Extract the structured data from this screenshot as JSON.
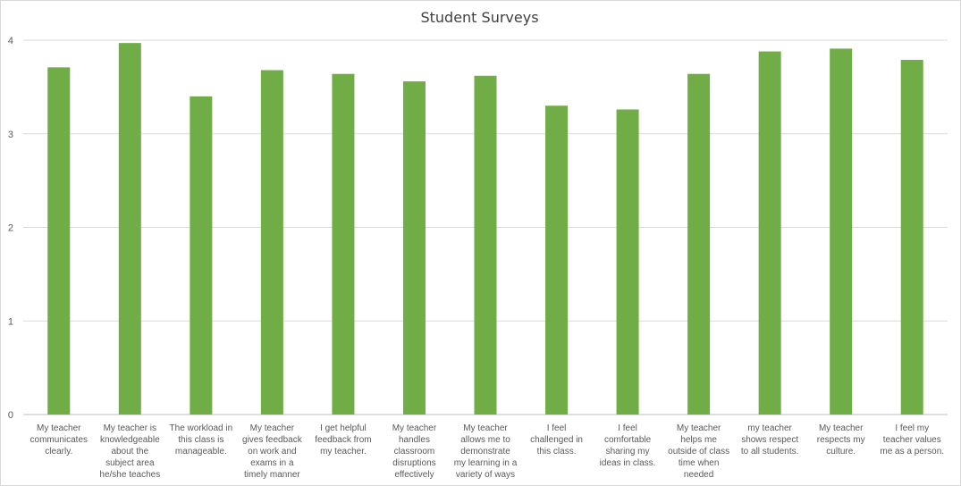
{
  "chart_data": {
    "type": "bar",
    "title": "Student Surveys",
    "xlabel": "",
    "ylabel": "",
    "ylim": [
      0,
      4
    ],
    "yticks": [
      "0",
      "1",
      "2",
      "3",
      "4"
    ],
    "grid": true,
    "bar_color": "#70ad47",
    "categories": [
      [
        "My teacher",
        "communicates",
        "clearly."
      ],
      [
        "My teacher is",
        "knowledgeable",
        "about the",
        "subject area",
        "he/she teaches"
      ],
      [
        "The workload in",
        "this class is",
        "manageable."
      ],
      [
        "My teacher",
        "gives feedback",
        "on work and",
        "exams in a",
        "timely manner"
      ],
      [
        "I get helpful",
        "feedback from",
        "my teacher."
      ],
      [
        "My teacher",
        "handles",
        "classroom",
        "disruptions",
        "effectively"
      ],
      [
        "My teacher",
        "allows me to",
        "demonstrate",
        "my learning in a",
        "variety of ways"
      ],
      [
        "I feel",
        "challenged in",
        "this class."
      ],
      [
        "I feel",
        "comfortable",
        "sharing my",
        "ideas in class."
      ],
      [
        "My teacher",
        "helps me",
        "outside of class",
        "time when",
        "needed"
      ],
      [
        "my teacher",
        "shows respect",
        "to all students."
      ],
      [
        "My teacher",
        "respects my",
        "culture."
      ],
      [
        "I feel my",
        "teacher values",
        "me as a person."
      ]
    ],
    "values": [
      3.71,
      3.97,
      3.4,
      3.68,
      3.64,
      3.56,
      3.62,
      3.3,
      3.26,
      3.64,
      3.88,
      3.91,
      3.79
    ]
  }
}
